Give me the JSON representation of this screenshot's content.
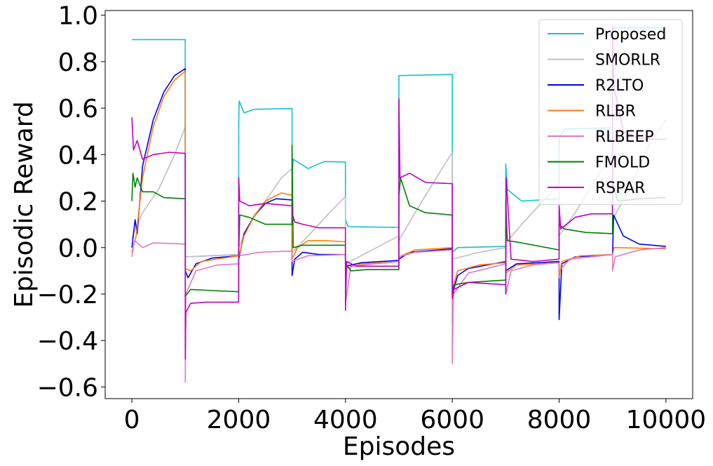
{
  "chart_data": {
    "type": "line",
    "title": "",
    "xlabel": "Episodes",
    "ylabel": "Episodic Reward",
    "xlim": [
      -500,
      10500
    ],
    "ylim": [
      -0.65,
      1.02
    ],
    "xticks": [
      0,
      2000,
      4000,
      6000,
      8000,
      10000
    ],
    "xtick_labels": [
      "0",
      "2000",
      "4000",
      "6000",
      "8000",
      "10000"
    ],
    "yticks": [
      -0.6,
      -0.4,
      -0.2,
      0.0,
      0.2,
      0.4,
      0.6,
      0.8,
      1.0
    ],
    "ytick_labels": [
      "−0.6",
      "−0.4",
      "−0.2",
      "0.0",
      "0.2",
      "0.4",
      "0.6",
      "0.8",
      "1.0"
    ],
    "grid": false,
    "legend_position": "top-right",
    "series": [
      {
        "name": "Proposed",
        "color": "#17becf",
        "points": [
          [
            0,
            0.895
          ],
          [
            999,
            0.895
          ],
          [
            1000,
            -0.04
          ],
          [
            1999,
            -0.03
          ],
          [
            2000,
            0.54
          ],
          [
            2010,
            0.63
          ],
          [
            2100,
            0.58
          ],
          [
            2300,
            0.595
          ],
          [
            2999,
            0.598
          ],
          [
            3000,
            0.31
          ],
          [
            3020,
            0.38
          ],
          [
            3300,
            0.34
          ],
          [
            3600,
            0.37
          ],
          [
            3999,
            0.368
          ],
          [
            4000,
            0.12
          ],
          [
            4050,
            0.09
          ],
          [
            4999,
            0.087
          ],
          [
            5000,
            0.74
          ],
          [
            5999,
            0.745
          ],
          [
            6000,
            -0.02
          ],
          [
            6100,
            0.0
          ],
          [
            6999,
            0.005
          ],
          [
            7000,
            0.36
          ],
          [
            7030,
            0.25
          ],
          [
            7300,
            0.2
          ],
          [
            7999,
            0.21
          ],
          [
            8000,
            0.47
          ],
          [
            8100,
            0.51
          ],
          [
            8999,
            0.515
          ],
          [
            9000,
            0.945
          ],
          [
            9999,
            0.945
          ]
        ]
      },
      {
        "name": "SMORLR",
        "color": "#bfbfbf",
        "points": [
          [
            0,
            0.04
          ],
          [
            200,
            0.15
          ],
          [
            500,
            0.25
          ],
          [
            800,
            0.4
          ],
          [
            999,
            0.52
          ],
          [
            1000,
            -0.04
          ],
          [
            1999,
            -0.03
          ],
          [
            2000,
            0.0
          ],
          [
            2200,
            0.1
          ],
          [
            2500,
            0.2
          ],
          [
            2800,
            0.3
          ],
          [
            2999,
            0.34
          ],
          [
            3000,
            -0.02
          ],
          [
            3300,
            0.05
          ],
          [
            3700,
            0.15
          ],
          [
            3999,
            0.22
          ],
          [
            4000,
            -0.07
          ],
          [
            4500,
            -0.01
          ],
          [
            4999,
            0.05
          ],
          [
            5000,
            0.03
          ],
          [
            5300,
            0.15
          ],
          [
            5700,
            0.3
          ],
          [
            5999,
            0.41
          ],
          [
            6000,
            -0.05
          ],
          [
            6500,
            -0.02
          ],
          [
            6999,
            0.0
          ],
          [
            7000,
            0.02
          ],
          [
            7300,
            0.1
          ],
          [
            7700,
            0.2
          ],
          [
            7999,
            0.27
          ],
          [
            8000,
            0.05
          ],
          [
            8300,
            0.15
          ],
          [
            8700,
            0.3
          ],
          [
            8999,
            0.4
          ],
          [
            9000,
            0.12
          ],
          [
            9300,
            0.25
          ],
          [
            9700,
            0.45
          ],
          [
            9999,
            0.55
          ]
        ]
      },
      {
        "name": "R2LTO",
        "color": "#0000ee",
        "points": [
          [
            0,
            0.0
          ],
          [
            60,
            0.12
          ],
          [
            100,
            0.06
          ],
          [
            200,
            0.35
          ],
          [
            400,
            0.55
          ],
          [
            600,
            0.67
          ],
          [
            800,
            0.74
          ],
          [
            999,
            0.77
          ],
          [
            1000,
            -0.1
          ],
          [
            1050,
            -0.13
          ],
          [
            1200,
            -0.07
          ],
          [
            1500,
            -0.045
          ],
          [
            1999,
            -0.035
          ],
          [
            2000,
            -0.05
          ],
          [
            2100,
            0.06
          ],
          [
            2300,
            0.14
          ],
          [
            2500,
            0.19
          ],
          [
            2700,
            0.21
          ],
          [
            2999,
            0.205
          ],
          [
            3000,
            -0.12
          ],
          [
            3050,
            -0.05
          ],
          [
            3200,
            -0.02
          ],
          [
            3500,
            -0.03
          ],
          [
            3999,
            -0.03
          ],
          [
            4000,
            -0.08
          ],
          [
            4300,
            -0.065
          ],
          [
            4999,
            -0.055
          ],
          [
            5000,
            -0.05
          ],
          [
            5200,
            -0.02
          ],
          [
            5999,
            -0.005
          ],
          [
            6000,
            -0.2
          ],
          [
            6100,
            -0.12
          ],
          [
            6300,
            -0.09
          ],
          [
            6999,
            -0.06
          ],
          [
            7000,
            -0.1
          ],
          [
            7200,
            -0.07
          ],
          [
            7999,
            -0.06
          ],
          [
            8000,
            -0.31
          ],
          [
            8050,
            -0.07
          ],
          [
            8300,
            -0.04
          ],
          [
            8999,
            -0.03
          ],
          [
            9000,
            -0.03
          ],
          [
            9020,
            0.14
          ],
          [
            9200,
            0.05
          ],
          [
            9500,
            0.015
          ],
          [
            9999,
            0.005
          ]
        ]
      },
      {
        "name": "RLBR",
        "color": "#ff7f0e",
        "points": [
          [
            0,
            -0.02
          ],
          [
            80,
            0.05
          ],
          [
            200,
            0.3
          ],
          [
            400,
            0.52
          ],
          [
            600,
            0.65
          ],
          [
            800,
            0.72
          ],
          [
            999,
            0.76
          ],
          [
            1000,
            -0.09
          ],
          [
            1100,
            -0.1
          ],
          [
            1300,
            -0.06
          ],
          [
            1999,
            -0.035
          ],
          [
            2000,
            -0.04
          ],
          [
            2100,
            0.05
          ],
          [
            2300,
            0.14
          ],
          [
            2500,
            0.2
          ],
          [
            2800,
            0.235
          ],
          [
            2999,
            0.225
          ],
          [
            3000,
            -0.05
          ],
          [
            3100,
            0.0
          ],
          [
            3300,
            0.03
          ],
          [
            3600,
            0.03
          ],
          [
            3999,
            0.025
          ],
          [
            4000,
            -0.09
          ],
          [
            4300,
            -0.07
          ],
          [
            4999,
            -0.06
          ],
          [
            5000,
            -0.04
          ],
          [
            5300,
            -0.01
          ],
          [
            5999,
            0.0
          ],
          [
            6000,
            -0.18
          ],
          [
            6100,
            -0.1
          ],
          [
            6500,
            -0.075
          ],
          [
            6999,
            -0.065
          ],
          [
            7000,
            -0.11
          ],
          [
            7200,
            -0.075
          ],
          [
            7999,
            -0.065
          ],
          [
            8000,
            -0.13
          ],
          [
            8050,
            -0.06
          ],
          [
            8400,
            -0.035
          ],
          [
            8999,
            -0.03
          ],
          [
            9000,
            -0.03
          ],
          [
            9030,
            0.0
          ],
          [
            9999,
            -0.005
          ]
        ]
      },
      {
        "name": "RLBEEP",
        "color": "#e377c2",
        "points": [
          [
            0,
            -0.04
          ],
          [
            50,
            0.03
          ],
          [
            200,
            0.0
          ],
          [
            400,
            0.02
          ],
          [
            999,
            0.015
          ],
          [
            1000,
            -0.58
          ],
          [
            1010,
            -0.2
          ],
          [
            1200,
            -0.1
          ],
          [
            1600,
            -0.075
          ],
          [
            1999,
            -0.07
          ],
          [
            2000,
            -0.035
          ],
          [
            2400,
            -0.02
          ],
          [
            2999,
            -0.015
          ],
          [
            3000,
            -0.06
          ],
          [
            3300,
            -0.035
          ],
          [
            3999,
            -0.03
          ],
          [
            4000,
            -0.24
          ],
          [
            4100,
            -0.08
          ],
          [
            4999,
            -0.06
          ],
          [
            5000,
            -0.04
          ],
          [
            5300,
            -0.02
          ],
          [
            5999,
            -0.01
          ],
          [
            6000,
            -0.5
          ],
          [
            6020,
            -0.2
          ],
          [
            6300,
            -0.11
          ],
          [
            6999,
            -0.07
          ],
          [
            7000,
            -0.2
          ],
          [
            7100,
            -0.1
          ],
          [
            7500,
            -0.075
          ],
          [
            7999,
            -0.065
          ],
          [
            8000,
            -0.1
          ],
          [
            8200,
            -0.05
          ],
          [
            8999,
            -0.03
          ],
          [
            9000,
            -0.1
          ],
          [
            9050,
            -0.04
          ],
          [
            9500,
            -0.01
          ],
          [
            9999,
            0.0
          ]
        ]
      },
      {
        "name": "FMOLD",
        "color": "#008000",
        "points": [
          [
            0,
            0.2
          ],
          [
            20,
            0.32
          ],
          [
            60,
            0.26
          ],
          [
            100,
            0.3
          ],
          [
            200,
            0.24
          ],
          [
            400,
            0.24
          ],
          [
            600,
            0.215
          ],
          [
            999,
            0.21
          ],
          [
            1000,
            -0.21
          ],
          [
            1100,
            -0.18
          ],
          [
            1500,
            -0.185
          ],
          [
            1999,
            -0.19
          ],
          [
            2000,
            -0.02
          ],
          [
            2020,
            0.14
          ],
          [
            2200,
            0.13
          ],
          [
            2500,
            0.1
          ],
          [
            2999,
            0.1
          ],
          [
            3000,
            0.44
          ],
          [
            3020,
            0.0
          ],
          [
            3200,
            0.01
          ],
          [
            3999,
            0.01
          ],
          [
            4000,
            -0.07
          ],
          [
            4100,
            -0.1
          ],
          [
            4400,
            -0.095
          ],
          [
            4999,
            -0.095
          ],
          [
            5000,
            0.22
          ],
          [
            5030,
            0.3
          ],
          [
            5200,
            0.18
          ],
          [
            5500,
            0.15
          ],
          [
            5999,
            0.14
          ],
          [
            6000,
            -0.2
          ],
          [
            6030,
            -0.16
          ],
          [
            6300,
            -0.15
          ],
          [
            6999,
            -0.14
          ],
          [
            7000,
            0.2
          ],
          [
            7030,
            0.03
          ],
          [
            7300,
            0.02
          ],
          [
            7999,
            -0.01
          ],
          [
            8000,
            0.1
          ],
          [
            8100,
            0.08
          ],
          [
            8500,
            0.065
          ],
          [
            8999,
            0.06
          ],
          [
            9000,
            0.28
          ],
          [
            9100,
            0.2
          ],
          [
            9500,
            0.21
          ],
          [
            9999,
            0.215
          ]
        ]
      },
      {
        "name": "RSPAR",
        "color": "#bf00bf",
        "points": [
          [
            0,
            0.56
          ],
          [
            30,
            0.42
          ],
          [
            100,
            0.46
          ],
          [
            200,
            0.38
          ],
          [
            400,
            0.4
          ],
          [
            700,
            0.41
          ],
          [
            999,
            0.405
          ],
          [
            1000,
            -0.48
          ],
          [
            1010,
            -0.28
          ],
          [
            1100,
            -0.24
          ],
          [
            1400,
            -0.235
          ],
          [
            1999,
            -0.235
          ],
          [
            2000,
            0.3
          ],
          [
            2020,
            0.2
          ],
          [
            2200,
            0.18
          ],
          [
            2500,
            0.19
          ],
          [
            2999,
            0.18
          ],
          [
            3000,
            0.15
          ],
          [
            3050,
            0.11
          ],
          [
            3200,
            0.1
          ],
          [
            3500,
            0.085
          ],
          [
            3999,
            0.085
          ],
          [
            4000,
            -0.27
          ],
          [
            4020,
            -0.06
          ],
          [
            4200,
            -0.08
          ],
          [
            4999,
            -0.08
          ],
          [
            5000,
            0.64
          ],
          [
            5020,
            0.3
          ],
          [
            5200,
            0.32
          ],
          [
            5500,
            0.28
          ],
          [
            5999,
            0.275
          ],
          [
            6000,
            -0.22
          ],
          [
            6030,
            -0.18
          ],
          [
            6300,
            -0.15
          ],
          [
            6999,
            -0.16
          ],
          [
            7000,
            -0.2
          ],
          [
            7010,
            0.3
          ],
          [
            7100,
            -0.05
          ],
          [
            7500,
            -0.06
          ],
          [
            7999,
            -0.05
          ],
          [
            8000,
            0.18
          ],
          [
            8030,
            0.08
          ],
          [
            8300,
            0.13
          ],
          [
            8600,
            0.145
          ],
          [
            8999,
            0.145
          ],
          [
            9000,
            0.95
          ],
          [
            9020,
            0.7
          ],
          [
            9200,
            0.5
          ],
          [
            9500,
            0.47
          ],
          [
            9999,
            0.465
          ]
        ]
      }
    ]
  }
}
